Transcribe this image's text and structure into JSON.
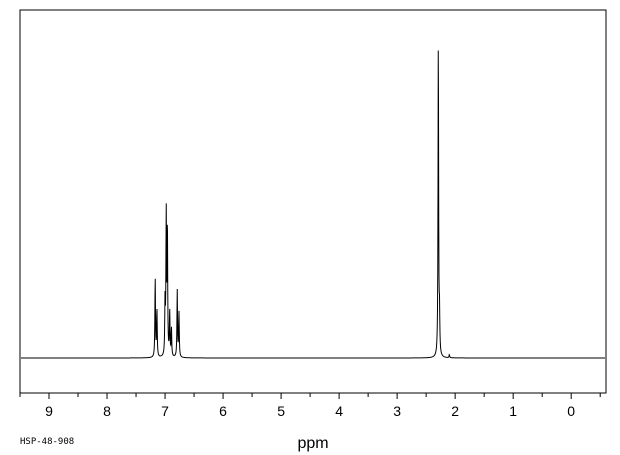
{
  "footer": {
    "sample_id": "HSP-48-908"
  },
  "chart_data": {
    "type": "line",
    "title": "",
    "xlabel": "ppm",
    "ylabel": "",
    "xlim": [
      9.5,
      -0.6
    ],
    "ylim": [
      0,
      1
    ],
    "x_reversed": true,
    "grid": false,
    "x_tick_labels": [
      "9",
      "8",
      "7",
      "6",
      "5",
      "4",
      "3",
      "2",
      "1",
      "0"
    ],
    "x_tick_values": [
      9,
      8,
      7,
      6,
      5,
      4,
      3,
      2,
      1,
      0
    ],
    "peaks": [
      {
        "ppm": 7.17,
        "intensity": 0.25
      },
      {
        "ppm": 7.14,
        "intensity": 0.15
      },
      {
        "ppm": 7.0,
        "intensity": 0.17
      },
      {
        "ppm": 6.98,
        "intensity": 0.44
      },
      {
        "ppm": 6.96,
        "intensity": 0.41
      },
      {
        "ppm": 6.92,
        "intensity": 0.14
      },
      {
        "ppm": 6.89,
        "intensity": 0.09
      },
      {
        "ppm": 6.79,
        "intensity": 0.21
      },
      {
        "ppm": 6.76,
        "intensity": 0.14
      },
      {
        "ppm": 2.29,
        "intensity": 1.0
      },
      {
        "ppm": 2.27,
        "intensity": 0.12
      },
      {
        "ppm": 2.1,
        "intensity": 0.01
      }
    ],
    "colors": {
      "line": "#000000",
      "frame": "#000000",
      "background": "#ffffff"
    }
  }
}
